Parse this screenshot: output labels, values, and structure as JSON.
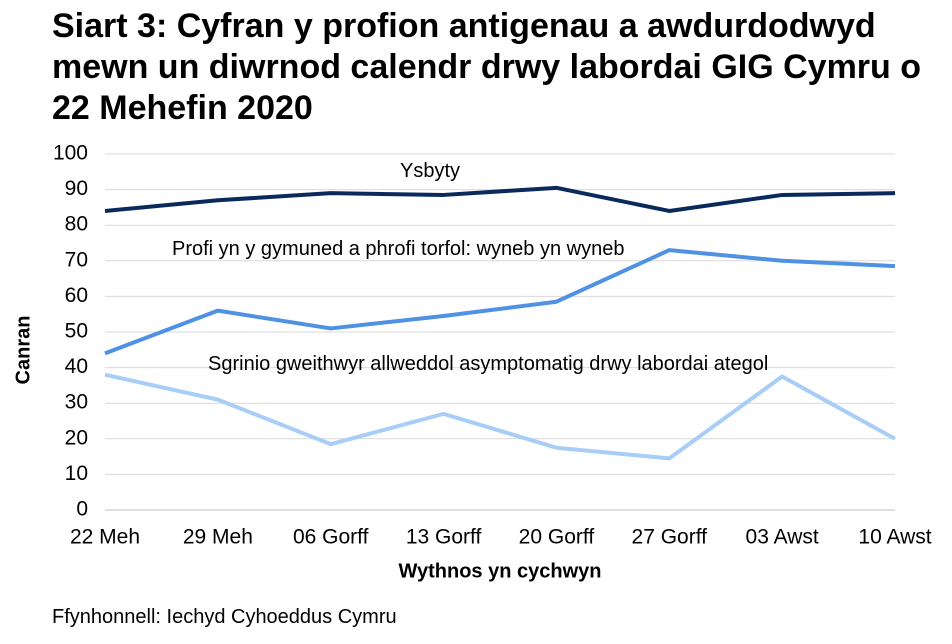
{
  "chart_data": {
    "type": "line",
    "title": "Siart 3: Cyfran y profion antigenau a awdurdodwyd mewn un diwrnod calendr drwy labordai GIG Cymru o 22 Mehefin 2020",
    "x_label": "Wythnos yn cychwyn",
    "y_label": "Canran",
    "source": "Ffynhonnell: Iechyd Cyhoeddus Cymru",
    "categories": [
      "22 Meh",
      "29 Meh",
      "06 Gorff",
      "13 Gorff",
      "20 Gorff",
      "27 Gorff",
      "03 Awst",
      "10 Awst"
    ],
    "series": [
      {
        "name": "Ysbyty",
        "color": "#0b2a5c",
        "values": [
          84,
          87,
          89,
          88.5,
          90.5,
          84,
          88.5,
          89
        ]
      },
      {
        "name": "Profi yn y gymuned a phrofi torfol: wyneb yn wyneb",
        "color": "#4f91e3",
        "values": [
          44,
          56,
          51,
          54.5,
          58.5,
          73,
          70,
          68.5
        ]
      },
      {
        "name": "Sgrinio gweithwyr allweddol asymptomatig drwy labordai ategol",
        "color": "#a8cdf6",
        "values": [
          38,
          31,
          18.5,
          27,
          17.5,
          14.5,
          37.5,
          20
        ]
      }
    ],
    "ylim": [
      0,
      100
    ],
    "yticks": [
      0,
      10,
      20,
      30,
      40,
      50,
      60,
      70,
      80,
      90,
      100
    ],
    "grid": true
  }
}
